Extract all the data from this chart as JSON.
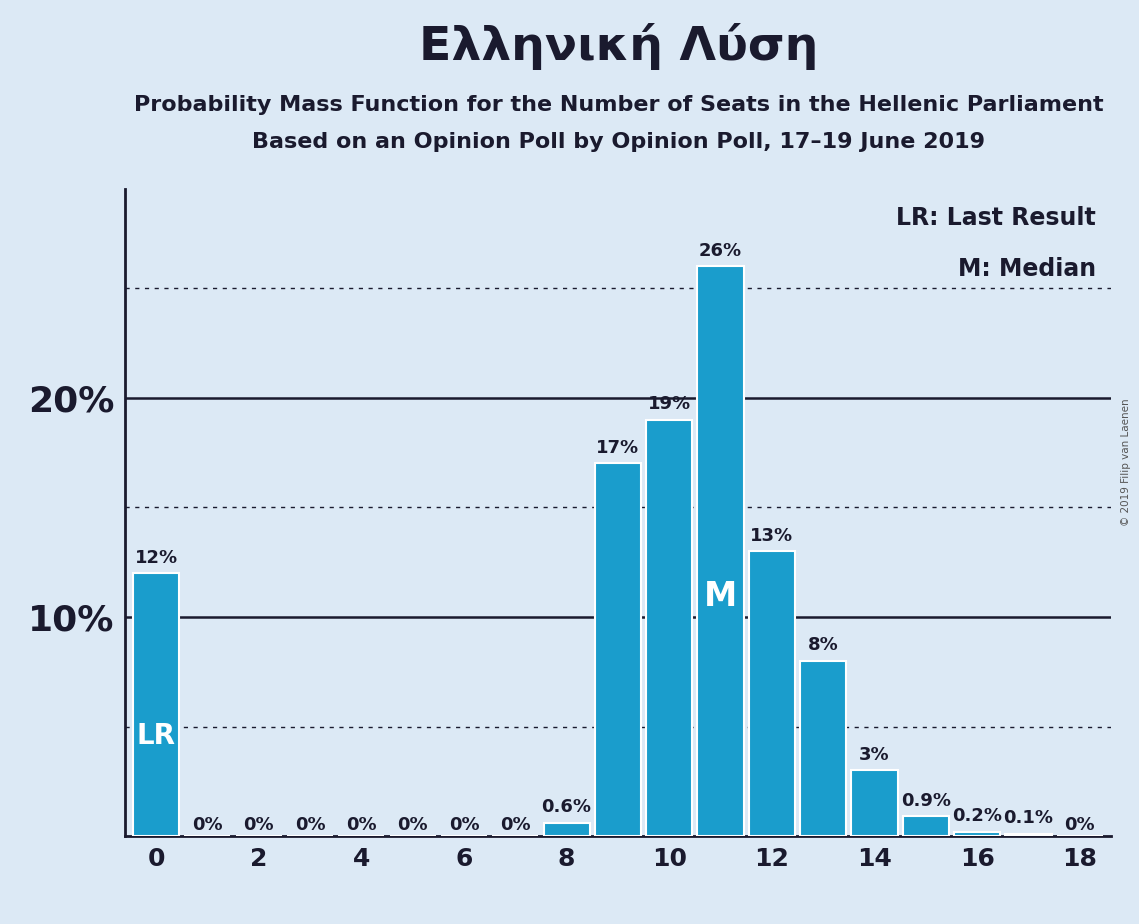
{
  "title": "Ελληνική Λύση",
  "subtitle": "Probability Mass Function for the Number of Seats in the Hellenic Parliament",
  "subsubtitle": "Based on an Opinion Poll by Opinion Poll, 17–19 June 2019",
  "copyright": "© 2019 Filip van Laenen",
  "seats": [
    0,
    1,
    2,
    3,
    4,
    5,
    6,
    7,
    8,
    9,
    10,
    11,
    12,
    13,
    14,
    15,
    16,
    17,
    18
  ],
  "probabilities": [
    0.12,
    0.0,
    0.0,
    0.0,
    0.0,
    0.0,
    0.0,
    0.0,
    0.006,
    0.17,
    0.19,
    0.26,
    0.13,
    0.08,
    0.03,
    0.009,
    0.002,
    0.001,
    0.0
  ],
  "bar_labels": [
    "12%",
    "0%",
    "0%",
    "0%",
    "0%",
    "0%",
    "0%",
    "0%",
    "0.6%",
    "17%",
    "19%",
    "26%",
    "13%",
    "8%",
    "3%",
    "0.9%",
    "0.2%",
    "0.1%",
    "0%"
  ],
  "bar_color": "#1a9dcc",
  "background_color": "#dce9f5",
  "last_result_seat": 0,
  "median_seat": 11,
  "xlim": [
    -0.6,
    18.6
  ],
  "ylim": [
    0,
    0.295
  ],
  "yticks_labeled": [
    0.1,
    0.2
  ],
  "ytick_labels_solid": [
    0.1,
    0.2
  ],
  "ytick_labels_dotted": [
    0.05,
    0.15,
    0.25
  ],
  "legend_lr": "LR: Last Result",
  "legend_m": "M: Median",
  "title_fontsize": 34,
  "subtitle_fontsize": 16,
  "subsubtitle_fontsize": 16,
  "bar_label_fontsize": 13,
  "lr_fontsize": 20,
  "m_fontsize": 24,
  "legend_fontsize": 17,
  "ytick_label_fontsize": 26,
  "xtick_label_fontsize": 18
}
